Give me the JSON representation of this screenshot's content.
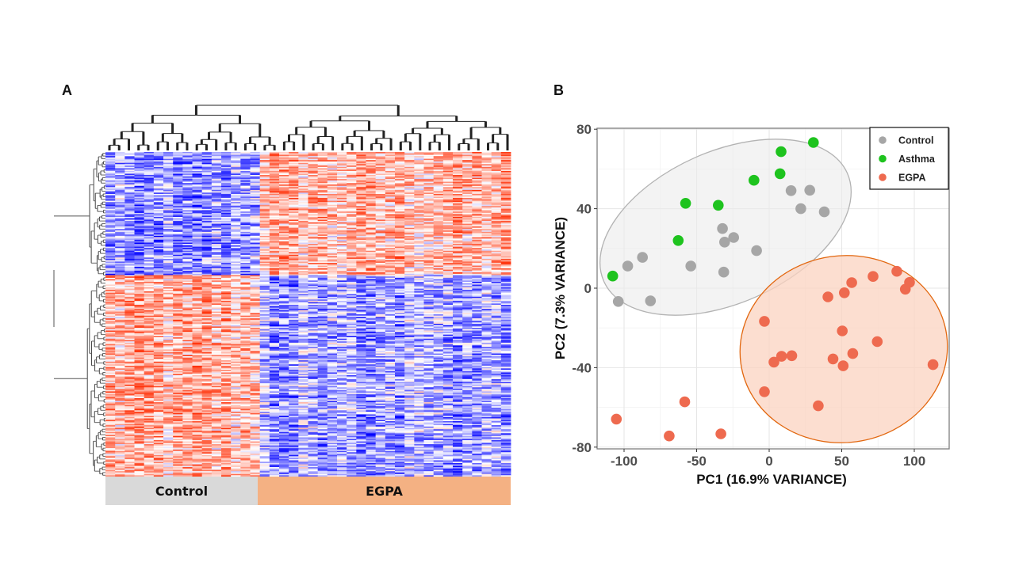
{
  "panels": {
    "a_label": "A",
    "b_label": "B"
  },
  "chart_data": [
    {
      "type": "heatmap",
      "title": "",
      "description": "Hierarchically clustered gene-expression heatmap with row and column dendrograms",
      "n_columns": 42,
      "n_rows": 240,
      "color_scale": {
        "low": "#0000ff",
        "mid": "#ffffff",
        "high": "#ff2a00"
      },
      "column_groups": [
        {
          "name": "Control",
          "n_columns": 16,
          "color": "#d9d9d9"
        },
        {
          "name": "EGPA",
          "n_columns": 26,
          "color": "#f4b183"
        }
      ],
      "row_clusters": [
        {
          "name": "upper",
          "fraction": 0.38,
          "pattern": {
            "Control": "low",
            "EGPA": "high"
          }
        },
        {
          "name": "lower",
          "fraction": 0.62,
          "pattern": {
            "Control": "high",
            "EGPA": "low"
          }
        }
      ]
    },
    {
      "type": "scatter",
      "title": "",
      "xlabel": "PC1 (16.9% VARIANCE)",
      "ylabel": "PC2 (7.3% VARIANCE)",
      "xlim": [
        -120,
        123
      ],
      "ylim": [
        -81,
        81
      ],
      "xticks": [
        -100,
        -50,
        0,
        50,
        100
      ],
      "yticks": [
        -80,
        -40,
        0,
        40,
        80
      ],
      "xtick_labels": [
        "-100",
        "-50",
        "0",
        "50",
        "100"
      ],
      "ytick_labels": [
        "-80",
        "-40",
        "0",
        "40",
        "80"
      ],
      "grid": true,
      "legend_position": "top-right",
      "series": [
        {
          "name": "Control",
          "color": "#a6a6a6",
          "points": [
            [
              15.1,
              49.1
            ],
            [
              28.0,
              49.3
            ],
            [
              21.8,
              40.0
            ],
            [
              38.0,
              38.4
            ],
            [
              -32.2,
              30.0
            ],
            [
              -24.5,
              25.5
            ],
            [
              -30.7,
              23.2
            ],
            [
              -8.7,
              18.9
            ],
            [
              -87.3,
              15.5
            ],
            [
              -97.5,
              11.1
            ],
            [
              -54.0,
              11.1
            ],
            [
              -31.3,
              8.1
            ],
            [
              -104.0,
              -6.7
            ],
            [
              -81.8,
              -6.4
            ]
          ]
        },
        {
          "name": "Asthma",
          "color": "#1ec31e",
          "points": [
            [
              30.5,
              73.3
            ],
            [
              8.2,
              68.7
            ],
            [
              7.5,
              57.6
            ],
            [
              -10.5,
              54.3
            ],
            [
              -57.6,
              42.7
            ],
            [
              -35.1,
              41.7
            ],
            [
              -62.7,
              24.0
            ],
            [
              -107.8,
              6.1
            ]
          ]
        },
        {
          "name": "EGPA",
          "color": "#ee6a4f",
          "points": [
            [
              88.0,
              8.5
            ],
            [
              71.6,
              5.9
            ],
            [
              96.7,
              2.9
            ],
            [
              56.9,
              2.8
            ],
            [
              93.8,
              -0.5
            ],
            [
              51.8,
              -2.3
            ],
            [
              40.5,
              -4.4
            ],
            [
              -3.3,
              -16.7
            ],
            [
              50.4,
              -21.5
            ],
            [
              74.5,
              -26.9
            ],
            [
              57.6,
              -32.9
            ],
            [
              15.6,
              -34.0
            ],
            [
              8.5,
              -34.3
            ],
            [
              3.3,
              -37.2
            ],
            [
              44.0,
              -35.6
            ],
            [
              51.0,
              -39.1
            ],
            [
              112.9,
              -38.5
            ],
            [
              -3.3,
              -52.1
            ],
            [
              33.8,
              -59.2
            ],
            [
              -58.2,
              -57.2
            ],
            [
              -105.3,
              -65.9
            ],
            [
              -68.9,
              -74.4
            ],
            [
              -33.3,
              -73.3
            ]
          ]
        }
      ],
      "ellipses": [
        {
          "group": "Control",
          "fill": "#ebebeb",
          "stroke": "#b3b3b3"
        },
        {
          "group": "EGPA",
          "fill": "#fbd3c0",
          "stroke": "#e2670f"
        }
      ]
    }
  ]
}
